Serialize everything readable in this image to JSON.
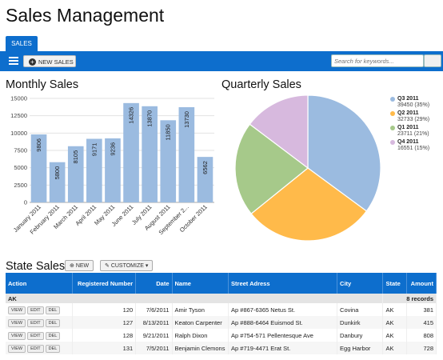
{
  "app": {
    "title": "Sales Management",
    "tab": "SALES"
  },
  "toolbar": {
    "new_sales": "NEW SALES",
    "search_placeholder": "Search for keywords..."
  },
  "monthly": {
    "title": "Monthly Sales"
  },
  "quarterly": {
    "title": "Quarterly Sales"
  },
  "state_sales": {
    "title": "State Sales",
    "new_label": "NEW",
    "customize_label": "CUSTOMIZE"
  },
  "chart_data": [
    {
      "type": "bar",
      "title": "Monthly Sales",
      "categories": [
        "January 2011",
        "February 2011",
        "March 2011",
        "April 2011",
        "May 2011",
        "June 2011",
        "July 2011",
        "August 2011",
        "September 2...",
        "October 2011"
      ],
      "values": [
        9806,
        5800,
        8105,
        9171,
        9236,
        14326,
        13870,
        11850,
        13730,
        6562
      ],
      "yticks": [
        0,
        2500,
        5000,
        7500,
        10000,
        12500,
        15000
      ],
      "ylim": [
        0,
        15000
      ],
      "color": "#9bbbe0",
      "grid": true
    },
    {
      "type": "pie",
      "title": "Quarterly Sales",
      "slices": [
        {
          "label": "Q3 2011",
          "value": 39450,
          "pct": "(35%)",
          "color": "#9bbbe0"
        },
        {
          "label": "Q2 2011",
          "value": 32733,
          "pct": "(29%)",
          "color": "#ffba4a"
        },
        {
          "label": "Q1 2011",
          "value": 23711,
          "pct": "(21%)",
          "color": "#a6c98a"
        },
        {
          "label": "Q4 2011",
          "value": 16551,
          "pct": "(15%)",
          "color": "#d7b9de"
        }
      ],
      "legend": "right"
    }
  ],
  "table": {
    "headers": [
      "Action",
      "Registered Number",
      "Date",
      "Name",
      "Street Adress",
      "City",
      "State",
      "Amount"
    ],
    "group": {
      "name": "AK",
      "count": "8 records"
    },
    "actions": [
      "VIEW",
      "EDIT",
      "DEL"
    ],
    "rows": [
      {
        "num": "120",
        "date": "7/6/2011",
        "name": "Amir Tyson",
        "street": "Ap #867-6365 Netus St.",
        "city": "Covina",
        "state": "AK",
        "amount": "381"
      },
      {
        "num": "127",
        "date": "8/13/2011",
        "name": "Keaton Carpenter",
        "street": "Ap #888-6464 Euismod St.",
        "city": "Dunkirk",
        "state": "AK",
        "amount": "415"
      },
      {
        "num": "128",
        "date": "9/21/2011",
        "name": "Ralph Dixon",
        "street": "Ap #754-571 Pellentesque Ave",
        "city": "Danbury",
        "state": "AK",
        "amount": "808"
      },
      {
        "num": "131",
        "date": "7/5/2011",
        "name": "Benjamin Clemons",
        "street": "Ap #719-4471 Erat St.",
        "city": "Egg Harbor",
        "state": "AK",
        "amount": "728"
      }
    ]
  }
}
